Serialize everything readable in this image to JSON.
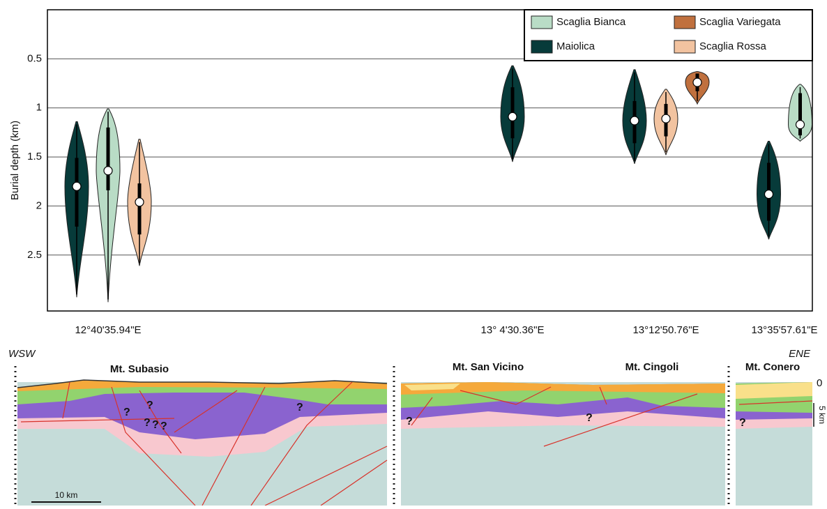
{
  "chart_data": {
    "type": "violin",
    "y_label": "Burial depth (km)",
    "categories": [
      "12°40'35.94\"E",
      "13° 4'30.36\"E",
      "13°12'50.76\"E",
      "13°35'57.61\"E"
    ],
    "ylim": [
      3.07,
      0
    ],
    "yticks": [
      0.5,
      1,
      1.5,
      2,
      2.5
    ],
    "grid": true,
    "legend": "upper right",
    "series": [
      {
        "name": "Maiolica",
        "color": "#073b3a",
        "values": [
          {
            "min": 1.14,
            "q1": 1.51,
            "median": 1.8,
            "q3": 2.21,
            "max": 2.93
          },
          {
            "min": 0.57,
            "q1": 0.79,
            "median": 1.09,
            "q3": 1.31,
            "max": 1.55
          },
          {
            "min": 0.61,
            "q1": 0.93,
            "median": 1.13,
            "q3": 1.36,
            "max": 1.57
          },
          {
            "min": 1.34,
            "q1": 1.56,
            "median": 1.88,
            "q3": 2.15,
            "max": 2.34
          }
        ]
      },
      {
        "name": "Scaglia Bianca",
        "color": "#b9dcc6",
        "values": [
          {
            "min": 1.01,
            "q1": 1.2,
            "median": 1.64,
            "q3": 1.84,
            "max": 2.98
          },
          null,
          null,
          {
            "min": 0.76,
            "q1": 0.85,
            "median": 1.17,
            "q3": 1.28,
            "max": 1.34
          }
        ]
      },
      {
        "name": "Scaglia Rossa",
        "color": "#f2c3a0",
        "values": [
          {
            "min": 1.32,
            "q1": 1.77,
            "median": 1.96,
            "q3": 2.29,
            "max": 2.61
          },
          null,
          {
            "min": 0.81,
            "q1": 0.96,
            "median": 1.11,
            "q3": 1.29,
            "max": 1.48
          },
          null
        ]
      },
      {
        "name": "Scaglia Variegata",
        "color": "#c0703e",
        "values": [
          null,
          null,
          {
            "min": 0.63,
            "q1": 0.65,
            "median": 0.74,
            "q3": 0.83,
            "max": 0.96
          },
          null
        ]
      }
    ]
  },
  "cross_section": {
    "west": "WSW",
    "east": "ENE",
    "peaks": [
      "Mt. Subasio",
      "Mt. San Vicino",
      "Mt. Cingoli",
      "Mt. Conero"
    ],
    "unknown": "?",
    "depth_zero": "0",
    "depth_scale": "5 km",
    "length_scale": "10 km"
  }
}
